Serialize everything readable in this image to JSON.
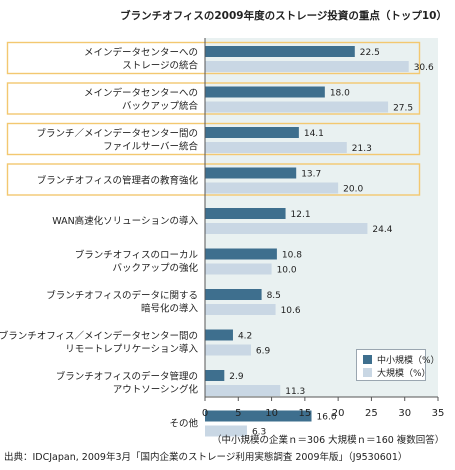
{
  "title": "ブランチオフィスの2009年度のストレージ投資の重点（トップ10）",
  "colors": {
    "small": "#3e6f8e",
    "large": "#c9d7e4",
    "plot_bg": "#e9f1f1",
    "highlight": "#f3c870"
  },
  "chart_data": {
    "type": "bar",
    "orientation": "horizontal",
    "categories": [
      [
        "メインデータセンターへの",
        "ストレージの統合"
      ],
      [
        "メインデータセンターへの",
        "バックアップ統合"
      ],
      [
        "ブランチ／メインデータセンター間の",
        "ファイルサーバー統合"
      ],
      [
        "ブランチオフィスの管理者の教育強化"
      ],
      [
        "WAN高速化ソリューションの導入"
      ],
      [
        "ブランチオフィスのローカル",
        "バックアップの強化"
      ],
      [
        "ブランチオフィスのデータに関する",
        "暗号化の導入"
      ],
      [
        "ブランチオフィス／メインデータセンター間の",
        "リモートレプリケーション導入"
      ],
      [
        "ブランチオフィスのデータ管理の",
        "アウトソーシング化"
      ],
      [
        "その他"
      ]
    ],
    "series": [
      {
        "name": "中小規模（%）",
        "values": [
          22.5,
          18.0,
          14.1,
          13.7,
          12.1,
          10.8,
          8.5,
          4.2,
          2.9,
          16.0
        ]
      },
      {
        "name": "大規模（%）",
        "values": [
          30.6,
          27.5,
          21.3,
          20.0,
          24.4,
          10.0,
          10.6,
          6.9,
          11.3,
          6.3
        ]
      }
    ],
    "value_labels": [
      [
        "22.5",
        "18.0",
        "14.1",
        "13.7",
        "12.1",
        "10.8",
        "8.5",
        "4.2",
        "2.9",
        "16.0"
      ],
      [
        "30.6",
        "27.5",
        "21.3",
        "20.0",
        "24.4",
        "10.0",
        "10.6",
        "6.9",
        "11.3",
        "6.3"
      ]
    ],
    "highlighted_categories": [
      0,
      1,
      2,
      3
    ],
    "xlim": [
      0,
      35
    ],
    "xticks": [
      "0",
      "5",
      "10",
      "15",
      "20",
      "25",
      "30",
      "35"
    ],
    "legend_position": "bottom-right",
    "grid": false
  },
  "note": "（中小規模の企業ｎ＝306 大規模ｎ＝160 複数回答）",
  "source": "出典：IDCJapan, 2009年3月「国内企業のストレージ利用実態調査 2009年版」（J9530601）"
}
